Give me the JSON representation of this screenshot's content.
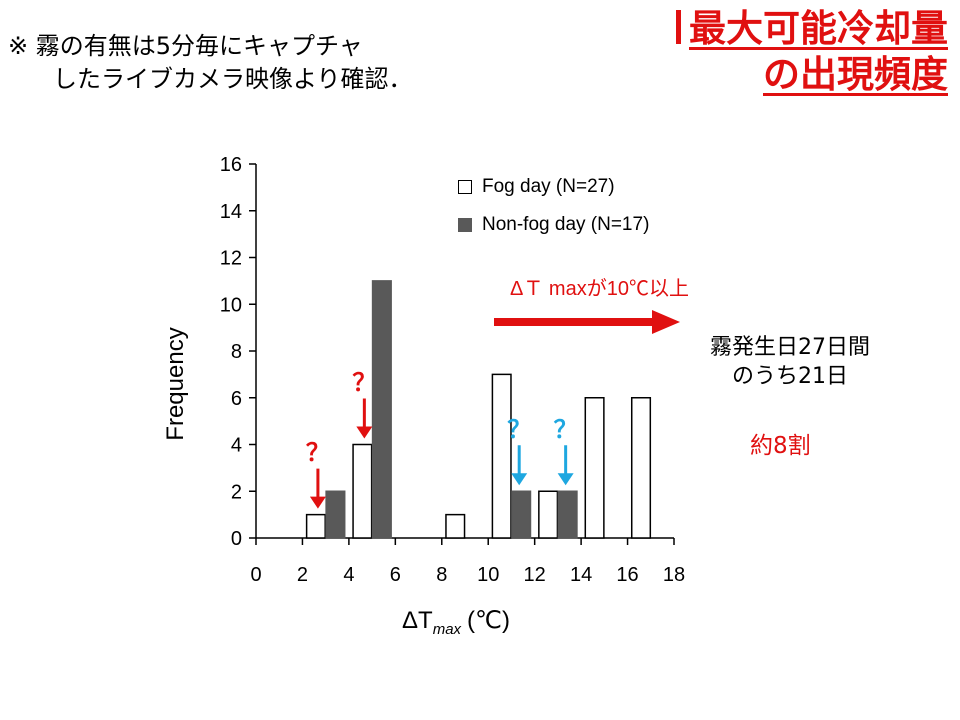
{
  "note": {
    "line1": "※ 霧の有無は5分毎にキャプチャ",
    "line2": "したライブカメラ映像より確認．"
  },
  "title": {
    "line1": "最大可能冷却量",
    "line2": "の出現頻度"
  },
  "annotations": {
    "delta_label": "ΔＴ maxが10℃以上",
    "fog_days_line1": "霧発生日27日間",
    "fog_days_line2": "のうち21日",
    "ratio": "約8割",
    "question_mark": "？"
  },
  "colors": {
    "accent_red": "#e01010",
    "question_blue": "#1ea7e0",
    "fog_bar_fill": "#ffffff",
    "nonfog_bar_fill": "#595959"
  },
  "chart_data": {
    "type": "bar",
    "title": "",
    "xlabel": "ΔT",
    "xlabel_sub": "max",
    "xlabel_unit": "(℃)",
    "ylabel": "Frequency",
    "xlim": [
      0,
      18
    ],
    "ylim": [
      0,
      16
    ],
    "xticks": [
      0,
      2,
      4,
      6,
      8,
      10,
      12,
      14,
      16,
      18
    ],
    "yticks": [
      0,
      2,
      4,
      6,
      8,
      10,
      12,
      14,
      16
    ],
    "bin_width": 2,
    "legend_position": "top-right",
    "series": [
      {
        "name": "Fog day (N=27)",
        "style": "white",
        "bins": [
          {
            "x_start": 2,
            "value": 1
          },
          {
            "x_start": 4,
            "value": 4
          },
          {
            "x_start": 8,
            "value": 1
          },
          {
            "x_start": 10,
            "value": 7
          },
          {
            "x_start": 12,
            "value": 2
          },
          {
            "x_start": 14,
            "value": 6
          },
          {
            "x_start": 16,
            "value": 6
          }
        ]
      },
      {
        "name": "Non-fog day (N=17)",
        "style": "gray",
        "bins": [
          {
            "x_start": 2,
            "value": 2
          },
          {
            "x_start": 4,
            "value": 11
          },
          {
            "x_start": 10,
            "value": 2
          },
          {
            "x_start": 12,
            "value": 2
          }
        ]
      }
    ],
    "question_marks": [
      {
        "x_start": 2,
        "color": "red"
      },
      {
        "x_start": 4,
        "color": "red"
      },
      {
        "x_start": 10,
        "color": "blue"
      },
      {
        "x_start": 12,
        "color": "blue"
      }
    ]
  }
}
